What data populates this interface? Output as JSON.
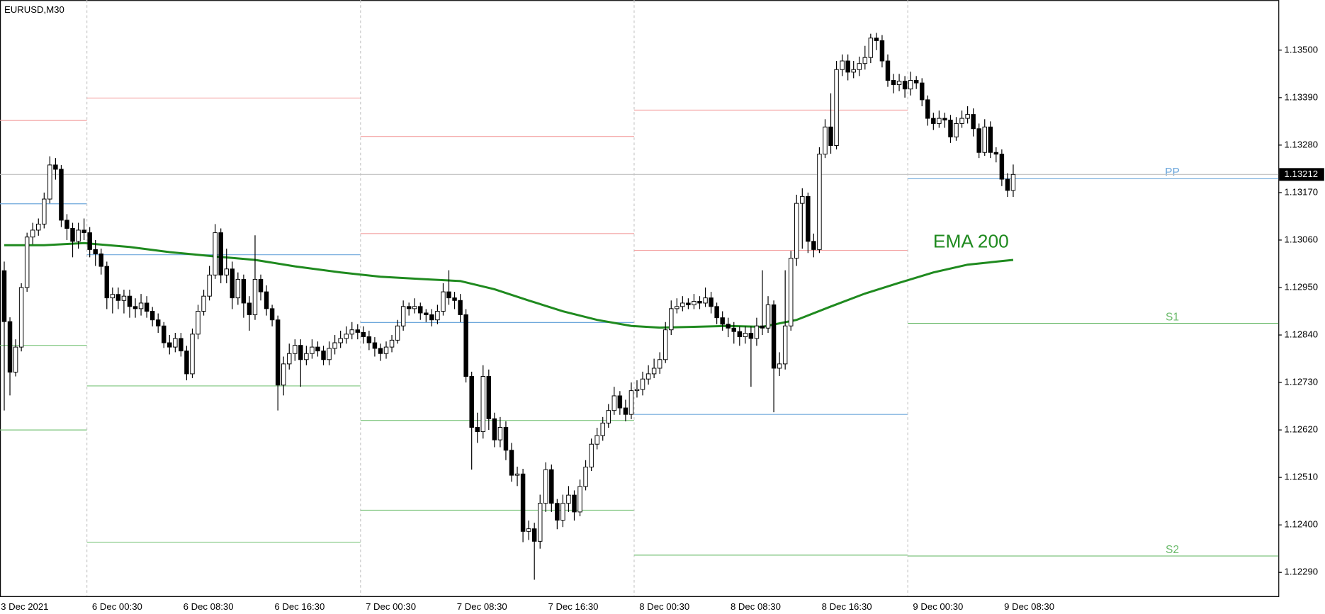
{
  "chart_data": {
    "type": "candlestick",
    "title": "EURUSD,M30",
    "categories": [
      "3 Dec 2021",
      null,
      null,
      null,
      null,
      null,
      null,
      null,
      null,
      null,
      null,
      null,
      null,
      null,
      null,
      null,
      "6 Dec 00:30",
      null,
      null,
      null,
      null,
      null,
      null,
      null,
      null,
      null,
      null,
      null,
      null,
      null,
      null,
      null,
      "6 Dec 08:30",
      null,
      null,
      null,
      null,
      null,
      null,
      null,
      null,
      null,
      null,
      null,
      null,
      null,
      null,
      null,
      "6 Dec 16:30",
      null,
      null,
      null,
      null,
      null,
      null,
      null,
      null,
      null,
      null,
      null,
      null,
      null,
      null,
      null,
      "7 Dec 00:30",
      null,
      null,
      null,
      null,
      null,
      null,
      null,
      null,
      null,
      null,
      null,
      null,
      null,
      null,
      null,
      "7 Dec 08:30",
      null,
      null,
      null,
      null,
      null,
      null,
      null,
      null,
      null,
      null,
      null,
      null,
      null,
      null,
      null,
      "7 Dec 16:30",
      null,
      null,
      null,
      null,
      null,
      null,
      null,
      null,
      null,
      null,
      null,
      null,
      null,
      null,
      null,
      "8 Dec 00:30",
      null,
      null,
      null,
      null,
      null,
      null,
      null,
      null,
      null,
      null,
      null,
      null,
      null,
      null,
      null,
      "8 Dec 08:30",
      null,
      null,
      null,
      null,
      null,
      null,
      null,
      null,
      null,
      null,
      null,
      null,
      null,
      null,
      null,
      "8 Dec 16:30",
      null,
      null,
      null,
      null,
      null,
      null,
      null,
      null,
      null,
      null,
      null,
      null,
      null,
      null,
      null,
      "9 Dec 00:30",
      null,
      null,
      null,
      null,
      null,
      null,
      null,
      null,
      null,
      null,
      null,
      null,
      null,
      null,
      null,
      "9 Dec 08:30",
      null
    ],
    "open": [
      1.12989,
      1.12871,
      1.12754,
      1.12812,
      1.1295,
      1.13067,
      1.13083,
      1.13097,
      1.13155,
      1.13234,
      1.13224,
      1.13106,
      1.13087,
      1.13057,
      1.13083,
      1.13077,
      1.13038,
      1.13028,
      1.12999,
      1.12926,
      1.12934,
      1.1292,
      1.1293,
      1.12906,
      1.12901,
      1.12914,
      1.12895,
      1.12875,
      1.12861,
      1.12822,
      1.12812,
      1.12832,
      1.12803,
      1.1275,
      1.12842,
      1.12895,
      1.1293,
      1.12979,
      1.13077,
      1.12979,
      1.12993,
      1.12926,
      1.12969,
      1.12914,
      1.12887,
      1.12969,
      1.1294,
      1.12901,
      1.12875,
      1.12724,
      1.12773,
      1.12797,
      1.12816,
      1.12783,
      1.12797,
      1.12812,
      1.12803,
      1.12783,
      1.12809,
      1.12822,
      1.12832,
      1.12842,
      1.12852,
      1.12846,
      1.12836,
      1.12822,
      1.12809,
      1.12797,
      1.12812,
      1.12828,
      1.12861,
      1.12906,
      1.12901,
      1.12906,
      1.12891,
      1.12887,
      1.12875,
      1.12895,
      1.1294,
      1.12926,
      1.1292,
      1.12887,
      1.12744,
      1.12626,
      1.12616,
      1.12744,
      1.12646,
      1.12597,
      1.12626,
      1.12573,
      1.12515,
      1.12518,
      1.12385,
      1.12391,
      1.12362,
      1.1245,
      1.12528,
      1.1245,
      1.12411,
      1.1245,
      1.12469,
      1.1243,
      1.12489,
      1.12534,
      1.12587,
      1.12607,
      1.12636,
      1.12665,
      1.12699,
      1.12671,
      1.12656,
      1.12711,
      1.12714,
      1.12738,
      1.1275,
      1.12763,
      1.12783,
      1.12852,
      1.12901,
      1.12906,
      1.12914,
      1.1291,
      1.12918,
      1.12914,
      1.12926,
      1.12906,
      1.1288,
      1.12865,
      1.12856,
      1.12848,
      1.12836,
      1.12844,
      1.12832,
      1.12861,
      1.12856,
      1.1291,
      1.12763,
      1.12773,
      1.12861,
      1.13018,
      1.13145,
      1.13161,
      1.13057,
      1.13038,
      1.13259,
      1.13322,
      1.13279,
      1.13455,
      1.13475,
      1.13449,
      1.13455,
      1.13469,
      1.13483,
      1.13528,
      1.13522,
      1.13475,
      1.1343,
      1.1342,
      1.13428,
      1.1341,
      1.1343,
      1.13424,
      1.13385,
      1.13342,
      1.1333,
      1.13342,
      1.13338,
      1.13299,
      1.1333,
      1.13342,
      1.13351,
      1.13318,
      1.13263,
      1.13322,
      1.13263,
      1.13259,
      1.13201,
      1.13175
    ],
    "high": [
      1.1301,
      1.12881,
      1.1283,
      1.1296,
      1.13077,
      1.131,
      1.1311,
      1.1317,
      1.13254,
      1.1325,
      1.13234,
      1.1312,
      1.131,
      1.131,
      1.1311,
      1.1309,
      1.1306,
      1.1304,
      1.1301,
      1.1295,
      1.1295,
      1.12945,
      1.12945,
      1.12925,
      1.12935,
      1.1293,
      1.12905,
      1.1289,
      1.1287,
      1.1284,
      1.12845,
      1.12845,
      1.12815,
      1.12855,
      1.1291,
      1.12945,
      1.13,
      1.13097,
      1.13087,
      1.1304,
      1.1301,
      1.12985,
      1.1298,
      1.1293,
      1.13071,
      1.1298,
      1.12955,
      1.1291,
      1.12885,
      1.1279,
      1.1282,
      1.1283,
      1.1283,
      1.12815,
      1.1283,
      1.12825,
      1.12815,
      1.12825,
      1.1284,
      1.1285,
      1.1286,
      1.1287,
      1.12865,
      1.1286,
      1.1285,
      1.12835,
      1.1282,
      1.12825,
      1.1284,
      1.12875,
      1.1292,
      1.12915,
      1.12925,
      1.12915,
      1.129,
      1.129,
      1.1291,
      1.1296,
      1.1299,
      1.1294,
      1.12935,
      1.129,
      1.12755,
      1.1266,
      1.1277,
      1.1276,
      1.1266,
      1.1265,
      1.1264,
      1.1259,
      1.12535,
      1.1253,
      1.1241,
      1.12405,
      1.1247,
      1.12545,
      1.1254,
      1.1246,
      1.1247,
      1.1249,
      1.1248,
      1.12505,
      1.1255,
      1.126,
      1.12625,
      1.1265,
      1.1268,
      1.1272,
      1.1271,
      1.1269,
      1.1273,
      1.12735,
      1.12755,
      1.1277,
      1.12785,
      1.128,
      1.1287,
      1.1292,
      1.12925,
      1.1293,
      1.12925,
      1.12935,
      1.1293,
      1.1295,
      1.1294,
      1.12915,
      1.12895,
      1.1288,
      1.1287,
      1.1286,
      1.1286,
      1.1286,
      1.1288,
      1.1299,
      1.1293,
      1.1292,
      1.128,
      1.1299,
      1.13035,
      1.13165,
      1.1318,
      1.1317,
      1.13075,
      1.13275,
      1.1334,
      1.134,
      1.13475,
      1.1349,
      1.1349,
      1.13475,
      1.13485,
      1.1351,
      1.13538,
      1.1354,
      1.13535,
      1.1349,
      1.13445,
      1.13445,
      1.1344,
      1.1345,
      1.1344,
      1.13435,
      1.13395,
      1.13355,
      1.1336,
      1.13355,
      1.1335,
      1.13345,
      1.1336,
      1.1337,
      1.13365,
      1.1333,
      1.1334,
      1.13335,
      1.13275,
      1.1327,
      1.13215,
      1.13235
    ],
    "low": [
      1.12665,
      1.127,
      1.12744,
      1.12802,
      1.1294,
      1.1305,
      1.1307,
      1.13087,
      1.13145,
      1.132,
      1.1309,
      1.1306,
      1.1302,
      1.1304,
      1.1306,
      1.1302,
      1.13,
      1.1298,
      1.129,
      1.1289,
      1.129,
      1.1289,
      1.1288,
      1.1288,
      1.12885,
      1.1288,
      1.1286,
      1.12845,
      1.1281,
      1.12795,
      1.128,
      1.1279,
      1.12735,
      1.1274,
      1.1283,
      1.12885,
      1.1292,
      1.1297,
      1.1296,
      1.1296,
      1.129,
      1.1291,
      1.1288,
      1.1285,
      1.12875,
      1.1292,
      1.12885,
      1.1286,
      1.12665,
      1.127,
      1.1276,
      1.1278,
      1.1272,
      1.1277,
      1.12785,
      1.1279,
      1.1277,
      1.1277,
      1.12795,
      1.1281,
      1.1282,
      1.1283,
      1.1283,
      1.1282,
      1.12805,
      1.1279,
      1.1278,
      1.12785,
      1.128,
      1.1282,
      1.1285,
      1.12885,
      1.1289,
      1.12875,
      1.1287,
      1.1286,
      1.12865,
      1.12885,
      1.1291,
      1.129,
      1.1287,
      1.1273,
      1.12528,
      1.1259,
      1.126,
      1.1262,
      1.1258,
      1.1258,
      1.1255,
      1.125,
      1.1249,
      1.1236,
      1.12365,
      1.12273,
      1.12345,
      1.1243,
      1.1243,
      1.1239,
      1.12395,
      1.1243,
      1.1241,
      1.1242,
      1.1248,
      1.12525,
      1.12575,
      1.12595,
      1.12625,
      1.12655,
      1.12655,
      1.1264,
      1.12645,
      1.12695,
      1.127,
      1.12725,
      1.1274,
      1.1275,
      1.12775,
      1.1284,
      1.1289,
      1.12895,
      1.129,
      1.129,
      1.129,
      1.12905,
      1.1289,
      1.12865,
      1.1285,
      1.12835,
      1.1282,
      1.12815,
      1.1282,
      1.1272,
      1.12815,
      1.1284,
      1.12845,
      1.12661,
      1.12745,
      1.1276,
      1.1285,
      1.13,
      1.1304,
      1.1303,
      1.1302,
      1.1303,
      1.1325,
      1.1326,
      1.1327,
      1.1344,
      1.1343,
      1.13435,
      1.1344,
      1.13455,
      1.1347,
      1.135,
      1.1346,
      1.13415,
      1.134,
      1.13405,
      1.1339,
      1.13395,
      1.1341,
      1.1337,
      1.13325,
      1.13315,
      1.1332,
      1.1332,
      1.13285,
      1.1329,
      1.1332,
      1.1333,
      1.133,
      1.1325,
      1.13255,
      1.1325,
      1.1324,
      1.13185,
      1.1316,
      1.1316
    ],
    "close": [
      1.12871,
      1.12754,
      1.12812,
      1.1295,
      1.13067,
      1.13083,
      1.13097,
      1.13155,
      1.13234,
      1.13224,
      1.13106,
      1.13087,
      1.13057,
      1.13083,
      1.13077,
      1.13038,
      1.13028,
      1.12999,
      1.12926,
      1.12934,
      1.1292,
      1.1293,
      1.12906,
      1.12901,
      1.12914,
      1.12895,
      1.12875,
      1.12861,
      1.12822,
      1.12812,
      1.12832,
      1.12803,
      1.1275,
      1.12842,
      1.12895,
      1.1293,
      1.12979,
      1.13077,
      1.12979,
      1.12993,
      1.12926,
      1.12969,
      1.12914,
      1.12887,
      1.12969,
      1.1294,
      1.12901,
      1.12875,
      1.12724,
      1.12773,
      1.12797,
      1.12816,
      1.12783,
      1.12797,
      1.12812,
      1.12803,
      1.12783,
      1.12809,
      1.12822,
      1.12832,
      1.12842,
      1.12852,
      1.12846,
      1.12836,
      1.12822,
      1.12809,
      1.12797,
      1.12812,
      1.12828,
      1.12861,
      1.12906,
      1.12901,
      1.12906,
      1.12891,
      1.12887,
      1.12875,
      1.12895,
      1.1294,
      1.12926,
      1.1292,
      1.12887,
      1.12744,
      1.12626,
      1.12616,
      1.12744,
      1.12646,
      1.12597,
      1.12626,
      1.12573,
      1.12515,
      1.12518,
      1.12385,
      1.12391,
      1.12362,
      1.1245,
      1.12528,
      1.1245,
      1.12411,
      1.1245,
      1.12469,
      1.1243,
      1.12489,
      1.12534,
      1.12587,
      1.12607,
      1.12636,
      1.12665,
      1.12699,
      1.12671,
      1.12656,
      1.12711,
      1.12714,
      1.12738,
      1.1275,
      1.12763,
      1.12783,
      1.12852,
      1.12901,
      1.12906,
      1.12914,
      1.1291,
      1.12918,
      1.12914,
      1.12926,
      1.12906,
      1.1288,
      1.12865,
      1.12856,
      1.12848,
      1.12836,
      1.12844,
      1.12832,
      1.12861,
      1.12856,
      1.1291,
      1.12763,
      1.12773,
      1.12861,
      1.13018,
      1.13145,
      1.13161,
      1.13057,
      1.13038,
      1.13259,
      1.13322,
      1.13279,
      1.13455,
      1.13475,
      1.13449,
      1.13455,
      1.13469,
      1.13483,
      1.13528,
      1.13522,
      1.13475,
      1.1343,
      1.1342,
      1.13428,
      1.1341,
      1.1343,
      1.13424,
      1.13385,
      1.13342,
      1.1333,
      1.13342,
      1.13338,
      1.13299,
      1.1333,
      1.13342,
      1.13351,
      1.13318,
      1.13263,
      1.13322,
      1.13263,
      1.13259,
      1.13201,
      1.13175,
      1.13212
    ],
    "up_color": "#ffffff",
    "down_color": "#000000",
    "ylim": [
      1.12235,
      1.13616
    ],
    "yticks": [
      {
        "value": 1.135,
        "label": "1.13500"
      },
      {
        "value": 1.1339,
        "label": "1.13390"
      },
      {
        "value": 1.1328,
        "label": "1.13280"
      },
      {
        "value": 1.1317,
        "label": "1.13170"
      },
      {
        "value": 1.1306,
        "label": "1.13060"
      },
      {
        "value": 1.1295,
        "label": "1.12950"
      },
      {
        "value": 1.1284,
        "label": "1.12840"
      },
      {
        "value": 1.1273,
        "label": "1.12730"
      },
      {
        "value": 1.1262,
        "label": "1.12620"
      },
      {
        "value": 1.1251,
        "label": "1.12510"
      },
      {
        "value": 1.124,
        "label": "1.12400"
      },
      {
        "value": 1.1229,
        "label": "1.12290"
      }
    ],
    "last_price": 1.13212,
    "indicator": {
      "name": "EMA 200",
      "color": "#1f8a1f",
      "x": [
        0,
        7,
        14,
        22,
        29,
        37,
        44,
        51,
        59,
        66,
        74,
        80,
        86,
        92,
        98,
        104,
        110,
        115,
        121,
        127,
        133,
        139,
        145,
        151,
        157,
        163,
        169,
        177
      ],
      "values": [
        1.13048,
        1.13048,
        1.13053,
        1.13044,
        1.13032,
        1.13022,
        1.13014,
        1.12999,
        1.12985,
        1.12975,
        1.12969,
        1.12965,
        1.12946,
        1.1292,
        1.12895,
        1.12875,
        1.12861,
        1.12857,
        1.12859,
        1.12861,
        1.12859,
        1.12875,
        1.12906,
        1.12936,
        1.12961,
        1.12985,
        1.13003,
        1.13014
      ]
    },
    "pivots": [
      {
        "from": 0,
        "lines": [
          {
            "value": 1.13337,
            "color": "#f4a3a3"
          },
          {
            "value": 1.13144,
            "color": "#6fa8dc"
          },
          {
            "value": 1.12816,
            "color": "#7cc47c"
          },
          {
            "value": 1.1262,
            "color": "#7cc47c"
          }
        ]
      },
      {
        "from": 15,
        "lines": [
          {
            "value": 1.13389,
            "color": "#f4a3a3"
          },
          {
            "value": 1.13026,
            "color": "#6fa8dc"
          },
          {
            "value": 1.12722,
            "color": "#7cc47c"
          },
          {
            "value": 1.1236,
            "color": "#7cc47c"
          }
        ]
      },
      {
        "from": 63,
        "lines": [
          {
            "value": 1.133,
            "color": "#f4a3a3"
          },
          {
            "value": 1.13075,
            "color": "#f4a3a3"
          },
          {
            "value": 1.12869,
            "color": "#6fa8dc"
          },
          {
            "value": 1.12642,
            "color": "#7cc47c"
          },
          {
            "value": 1.12434,
            "color": "#7cc47c"
          }
        ]
      },
      {
        "from": 111,
        "lines": [
          {
            "value": 1.13361,
            "color": "#f4a3a3"
          },
          {
            "value": 1.13036,
            "color": "#f4a3a3"
          },
          {
            "value": 1.12656,
            "color": "#6fa8dc"
          },
          {
            "value": 1.1233,
            "color": "#7cc47c"
          }
        ]
      },
      {
        "from": 159,
        "lines": [
          {
            "value": 1.13202,
            "color": "#6fa8dc",
            "label": "PP"
          },
          {
            "value": 1.12867,
            "color": "#6dbb6d",
            "label": "S1"
          },
          {
            "value": 1.12328,
            "color": "#6dbb6d",
            "label": "S2"
          }
        ]
      }
    ]
  }
}
